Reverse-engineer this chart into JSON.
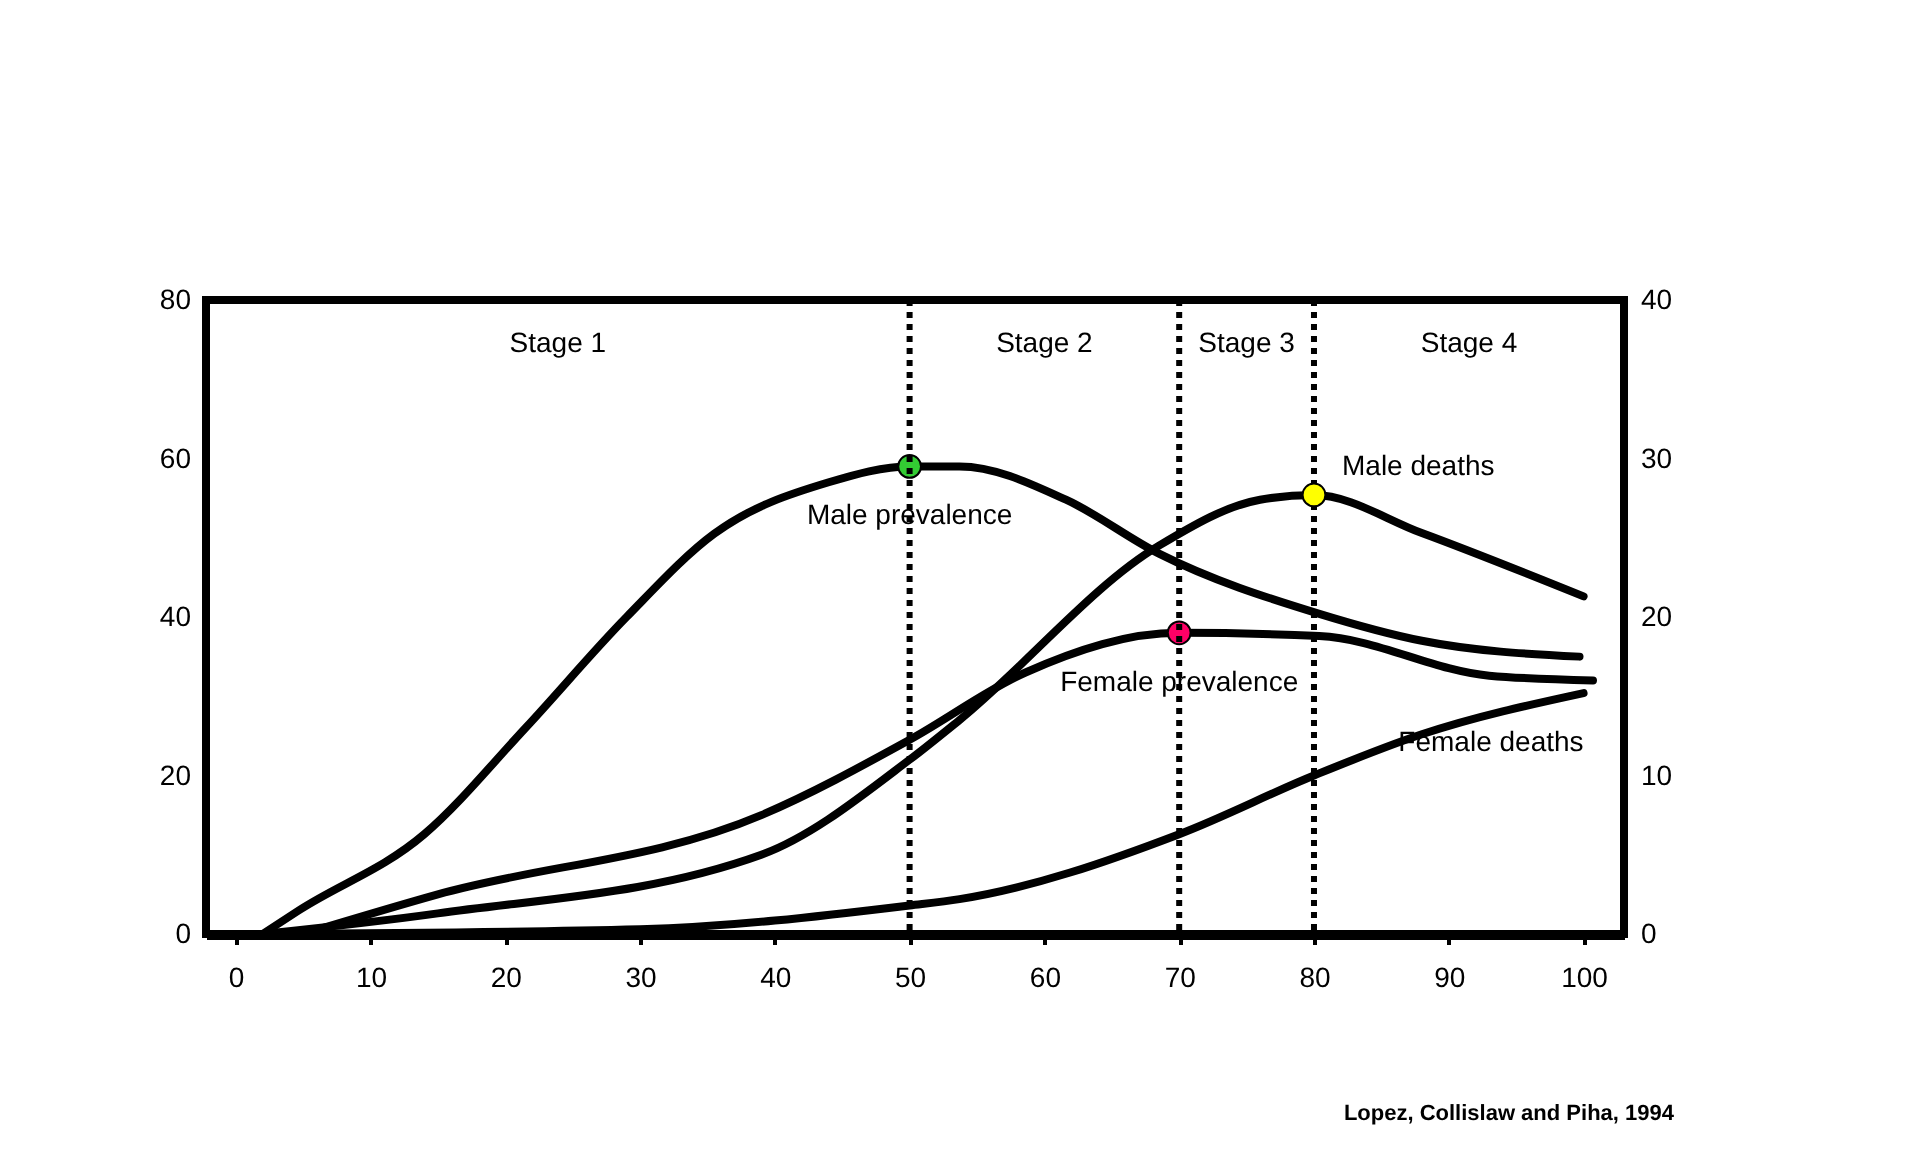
{
  "chart_data": {
    "type": "line",
    "xlim": [
      -2.2,
      103
    ],
    "xticks": [
      0,
      10,
      20,
      30,
      40,
      50,
      60,
      70,
      80,
      90,
      100
    ],
    "ylim": [
      0,
      80
    ],
    "yticks": [
      0,
      20,
      40,
      60,
      80
    ],
    "y2lim": [
      0,
      40
    ],
    "y2ticks": [
      0,
      10,
      20,
      30,
      40
    ],
    "grid": false,
    "marker": "none",
    "line_style": "solid",
    "series": [
      {
        "name": "Male prevalence",
        "color": "#000000",
        "x": [
          2,
          4.7,
          14,
          21.5,
          29,
          35.5,
          44,
          50,
          53.7,
          61.6,
          68.5,
          80.4,
          88,
          99.7
        ],
        "values": [
          0,
          3,
          12.6,
          26,
          40,
          50.5,
          57,
          59,
          59,
          54.8,
          48,
          40.4,
          37,
          35
        ]
      },
      {
        "name": "Male deaths",
        "color": "#000000",
        "axis": "y2",
        "x": [
          2,
          15,
          39,
          50,
          53.7,
          68.5,
          76,
          80,
          88,
          100
        ],
        "values": [
          0,
          1.3,
          5,
          11,
          13.5,
          24.5,
          27.4,
          27.7,
          25.3,
          21.3
        ]
      },
      {
        "name": "Female prevalence",
        "color": "#000000",
        "x": [
          5,
          15,
          39,
          50,
          58.6,
          70,
          80.4,
          93,
          100.7
        ],
        "values": [
          0,
          5,
          15,
          24.5,
          33,
          38,
          37.6,
          32.6,
          32
        ]
      },
      {
        "name": "Female deaths",
        "color": "#000000",
        "axis": "y2",
        "x": [
          2,
          30,
          50,
          53.7,
          70,
          80,
          88,
          100
        ],
        "values": [
          0,
          0.3,
          1.8,
          2.2,
          6.3,
          10,
          12.6,
          15.2
        ]
      },
      {
        "type": "scatter",
        "marker": "circle",
        "color": "#33cc33",
        "x": [
          50
        ],
        "values": [
          59
        ]
      },
      {
        "type": "scatter",
        "marker": "circle",
        "color": "#ff0066",
        "x": [
          70
        ],
        "values": [
          38
        ]
      },
      {
        "type": "scatter",
        "marker": "circle",
        "color": "#ffff00",
        "axis": "y2",
        "x": [
          80
        ],
        "values": [
          27.7
        ]
      }
    ],
    "ref_lines": [
      {
        "axis": "x",
        "value": 50,
        "line_style": "dotted",
        "color": "#000000"
      },
      {
        "axis": "x",
        "value": 70,
        "line_style": "dotted",
        "color": "#000000"
      },
      {
        "axis": "x",
        "value": 80,
        "line_style": "dotted",
        "color": "#000000"
      }
    ],
    "annotations": [
      "Stage 1",
      "Stage 2",
      "Stage 3",
      "Stage 4",
      "Lopez, Collislaw and Piha, 1994"
    ]
  }
}
